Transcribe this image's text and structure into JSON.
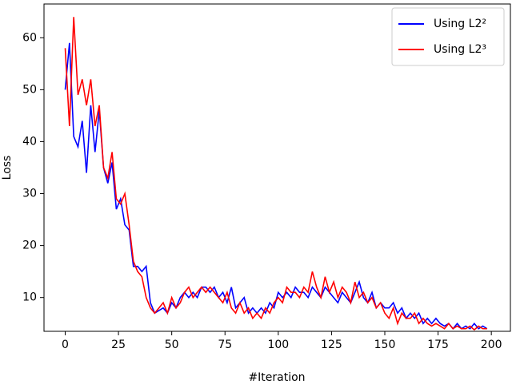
{
  "chart_data": {
    "type": "line",
    "xlabel": "#Iteration",
    "ylabel": "Loss",
    "x": [
      0,
      2,
      4,
      6,
      8,
      10,
      12,
      14,
      16,
      18,
      20,
      22,
      24,
      26,
      28,
      30,
      32,
      34,
      36,
      38,
      40,
      42,
      44,
      46,
      48,
      50,
      52,
      54,
      56,
      58,
      60,
      62,
      64,
      66,
      68,
      70,
      72,
      74,
      76,
      78,
      80,
      82,
      84,
      86,
      88,
      90,
      92,
      94,
      96,
      98,
      100,
      102,
      104,
      106,
      108,
      110,
      112,
      114,
      116,
      118,
      120,
      122,
      124,
      126,
      128,
      130,
      132,
      134,
      136,
      138,
      140,
      142,
      144,
      146,
      148,
      150,
      152,
      154,
      156,
      158,
      160,
      162,
      164,
      166,
      168,
      170,
      172,
      174,
      176,
      178,
      180,
      182,
      184,
      186,
      188,
      190,
      192,
      194,
      196,
      198
    ],
    "series": [
      {
        "name": "Using L2²",
        "color": "#0000ff",
        "values": [
          50,
          59,
          41,
          39,
          44,
          34,
          47,
          38,
          46,
          35,
          32,
          36,
          27,
          29,
          24,
          23,
          16,
          16,
          15,
          16,
          9,
          7,
          7.5,
          8,
          7,
          9,
          8,
          10,
          11,
          10,
          11,
          10,
          12,
          12,
          11,
          12,
          10,
          11,
          9,
          12,
          8,
          9,
          10,
          7,
          8,
          7,
          8,
          7,
          9,
          8,
          11,
          10,
          11,
          10,
          12,
          11,
          11,
          10,
          12,
          11,
          10,
          12,
          11,
          10,
          9,
          11,
          10,
          9,
          11,
          13,
          10,
          9,
          11,
          8,
          9,
          8,
          8,
          9,
          7,
          8,
          6,
          7,
          6,
          7,
          5,
          6,
          5,
          6,
          5,
          4.5,
          5,
          4,
          5,
          4,
          4.5,
          4,
          5,
          4,
          4.5,
          4
        ]
      },
      {
        "name": "Using L2³",
        "color": "#ff0000",
        "values": [
          58,
          43,
          64,
          49,
          52,
          47,
          52,
          43,
          47,
          35,
          33,
          38,
          29,
          28,
          30,
          24,
          17,
          15,
          14,
          10,
          8,
          7,
          8,
          9,
          7,
          10,
          8,
          9,
          11,
          12,
          10,
          11,
          12,
          11,
          12,
          11,
          10,
          9,
          11,
          8,
          7,
          9,
          7,
          8,
          6,
          7,
          6,
          8,
          7,
          9,
          10,
          9,
          12,
          11,
          11,
          10,
          12,
          11,
          15,
          12,
          10,
          14,
          11,
          13,
          10,
          12,
          11,
          9,
          13,
          10,
          11,
          9,
          10,
          8,
          9,
          7,
          6,
          8,
          5,
          7,
          6,
          6,
          7,
          5,
          6,
          5,
          4.5,
          5,
          4.5,
          4,
          5,
          4,
          4.5,
          4,
          4,
          4.5,
          3.8,
          4.5,
          4,
          4
        ]
      }
    ],
    "xlim": [
      -9.95,
      208.95
    ],
    "xticks": [
      0,
      25,
      50,
      75,
      100,
      125,
      150,
      175,
      200
    ],
    "ylim": [
      3.5,
      66.5
    ],
    "yticks": [
      10,
      20,
      30,
      40,
      50,
      60
    ],
    "grid": false,
    "legend": "upper right"
  }
}
